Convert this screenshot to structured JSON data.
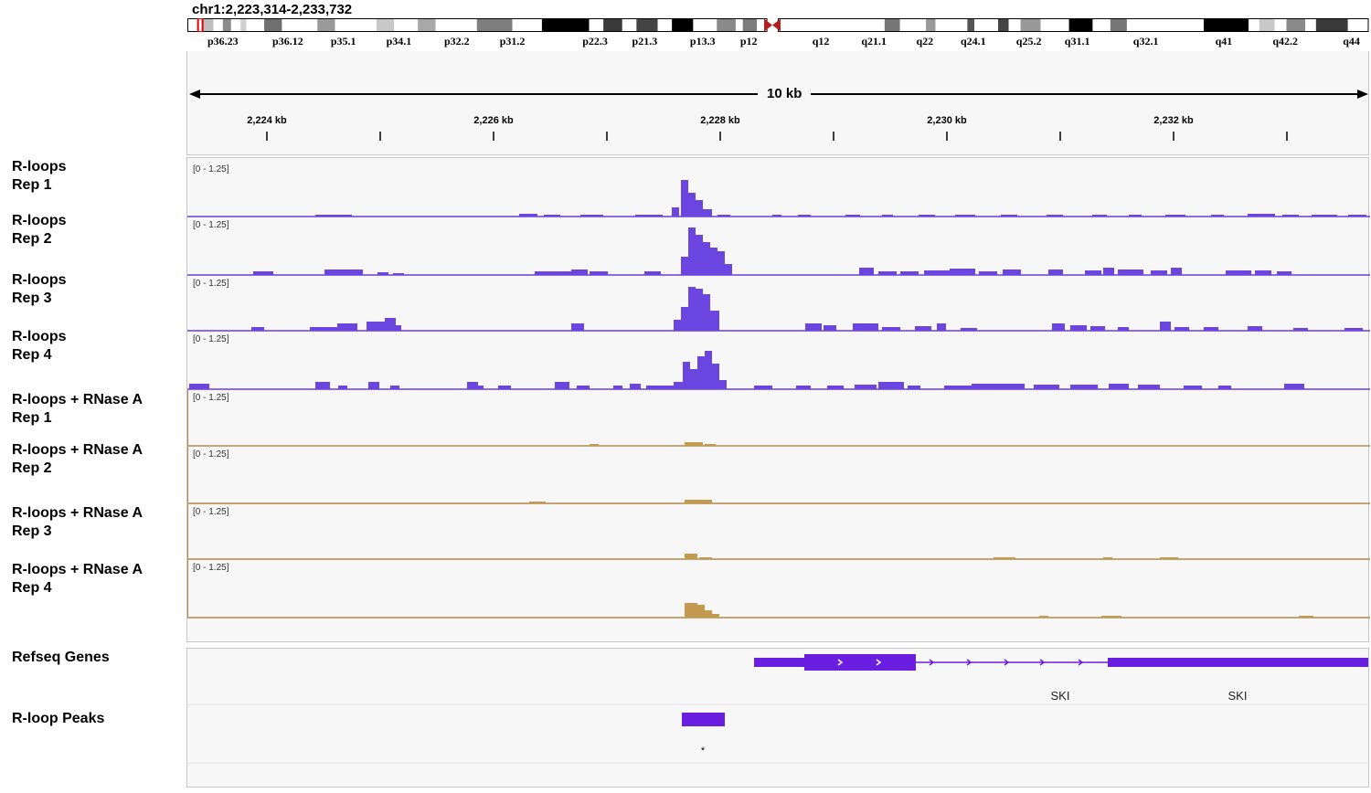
{
  "locus": "chr1:2,223,314-2,233,732",
  "ideogram": {
    "bands": [
      {
        "label": "p36.23",
        "pos": 0.03
      },
      {
        "label": "p36.12",
        "pos": 0.085
      },
      {
        "label": "p35.1",
        "pos": 0.132
      },
      {
        "label": "p34.1",
        "pos": 0.179
      },
      {
        "label": "p32.2",
        "pos": 0.228
      },
      {
        "label": "p31.2",
        "pos": 0.275
      },
      {
        "label": "p22.3",
        "pos": 0.345
      },
      {
        "label": "p21.3",
        "pos": 0.387
      },
      {
        "label": "p13.3",
        "pos": 0.436
      },
      {
        "label": "p12",
        "pos": 0.475
      },
      {
        "label": "q12",
        "pos": 0.536
      },
      {
        "label": "q21.1",
        "pos": 0.581
      },
      {
        "label": "q22",
        "pos": 0.624
      },
      {
        "label": "q24.1",
        "pos": 0.665
      },
      {
        "label": "q25.2",
        "pos": 0.712
      },
      {
        "label": "q31.1",
        "pos": 0.753
      },
      {
        "label": "q32.1",
        "pos": 0.811
      },
      {
        "label": "q41",
        "pos": 0.877
      },
      {
        "label": "q42.2",
        "pos": 0.929
      },
      {
        "label": "q44",
        "pos": 0.985
      }
    ],
    "current_view_pos": 0.009
  },
  "ruler": {
    "scale_label": "10 kb",
    "tick_labels": [
      "2,224 kb",
      "2,226 kb",
      "2,228 kb",
      "2,230 kb",
      "2,232 kb"
    ]
  },
  "tracks": [
    {
      "name_line1": "R-loops",
      "name_line2": "Rep 1",
      "range": "[0 - 1.25]",
      "color": "#6a3fdc",
      "fill": "#6b45e0"
    },
    {
      "name_line1": "R-loops",
      "name_line2": "Rep 2",
      "range": "[0 - 1.25]",
      "color": "#6a3fdc",
      "fill": "#6b45e0"
    },
    {
      "name_line1": "R-loops",
      "name_line2": "Rep 3",
      "range": "[0 - 1.25]",
      "color": "#6a3fdc",
      "fill": "#6b45e0"
    },
    {
      "name_line1": "R-loops",
      "name_line2": "Rep 4",
      "range": "[0 - 1.25]",
      "color": "#6a3fdc",
      "fill": "#6b45e0"
    },
    {
      "name_line1": "R-loops + RNase A",
      "name_line2": "Rep 1",
      "range": "[0 - 1.25]",
      "color": "#b08a48",
      "fill": "#c49a50"
    },
    {
      "name_line1": "R-loops + RNase A",
      "name_line2": "Rep 2",
      "range": "[0 - 1.25]",
      "color": "#b08a48",
      "fill": "#c49a50"
    },
    {
      "name_line1": "R-loops + RNase A",
      "name_line2": "Rep 3",
      "range": "[0 - 1.25]",
      "color": "#b08a48",
      "fill": "#c49a50"
    },
    {
      "name_line1": "R-loops + RNase A",
      "name_line2": "Rep 4",
      "range": "[0 - 1.25]",
      "color": "#b08a48",
      "fill": "#c49a50"
    }
  ],
  "genes_track": {
    "name": "Refseq Genes",
    "color": "#6a1ee0",
    "gene_labels": [
      "SKI",
      "SKI"
    ]
  },
  "peaks_track": {
    "name": "R-loop Peaks",
    "color": "#6a1ee0",
    "peak_name": "*"
  }
}
